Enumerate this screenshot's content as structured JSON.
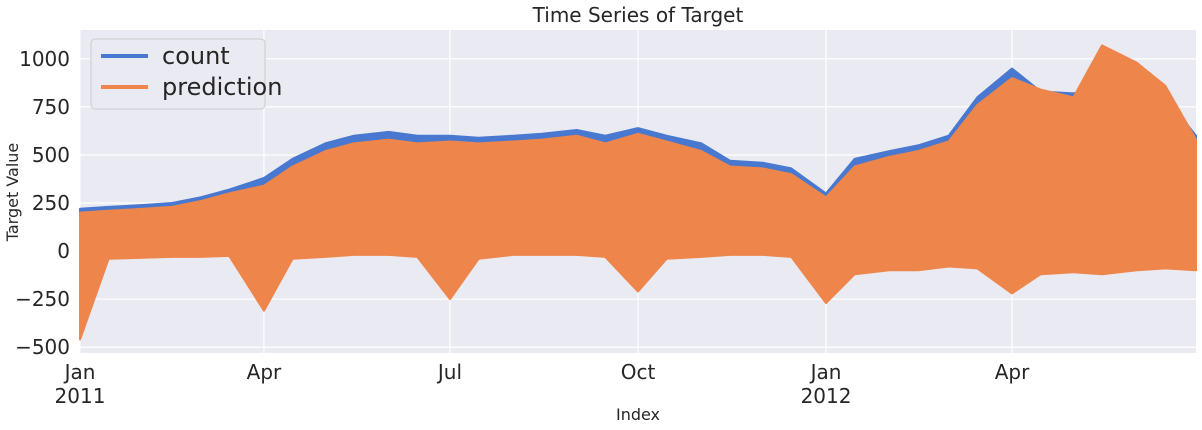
{
  "chart_data": {
    "type": "line",
    "title": "Time Series of Target",
    "xlabel": "Index",
    "ylabel": "Target Value",
    "x_range": [
      "2011-01-01",
      "2012-06-30"
    ],
    "ylim": [
      -530,
      1150
    ],
    "yticks": [
      -500,
      -250,
      0,
      250,
      500,
      750,
      1000
    ],
    "xticks": [
      {
        "date": "2011-01-01",
        "label": "Jan",
        "sublabel": "2011"
      },
      {
        "date": "2011-04-01",
        "label": "Apr",
        "sublabel": ""
      },
      {
        "date": "2011-07-01",
        "label": "Jul",
        "sublabel": ""
      },
      {
        "date": "2011-10-01",
        "label": "Oct",
        "sublabel": ""
      },
      {
        "date": "2012-01-01",
        "label": "Jan",
        "sublabel": "2012"
      },
      {
        "date": "2012-04-01",
        "label": "Apr",
        "sublabel": ""
      }
    ],
    "grid": true,
    "legend_position": "top-left",
    "background": "#EAEAF2",
    "series": [
      {
        "name": "count",
        "color": "#4878CF",
        "x": [
          "2011-01-01",
          "2011-01-15",
          "2011-02-01",
          "2011-02-15",
          "2011-03-01",
          "2011-03-15",
          "2011-04-01",
          "2011-04-15",
          "2011-05-01",
          "2011-05-15",
          "2011-06-01",
          "2011-06-15",
          "2011-07-01",
          "2011-07-15",
          "2011-08-01",
          "2011-08-15",
          "2011-09-01",
          "2011-09-15",
          "2011-10-01",
          "2011-10-15",
          "2011-11-01",
          "2011-11-15",
          "2011-12-01",
          "2011-12-15",
          "2012-01-01",
          "2012-01-15",
          "2012-02-01",
          "2012-02-15",
          "2012-03-01",
          "2012-03-15",
          "2012-04-01",
          "2012-04-15",
          "2012-05-01",
          "2012-05-15",
          "2012-06-01",
          "2012-06-15",
          "2012-06-30"
        ],
        "upper": [
          220,
          230,
          240,
          250,
          280,
          320,
          380,
          480,
          560,
          600,
          620,
          600,
          600,
          590,
          600,
          610,
          630,
          600,
          640,
          600,
          560,
          470,
          460,
          430,
          300,
          480,
          520,
          550,
          600,
          800,
          950,
          830,
          820,
          850,
          840,
          800,
          600
        ],
        "lower": [
          -30,
          -20,
          -15,
          -10,
          -10,
          -5,
          -5,
          0,
          0,
          0,
          0,
          0,
          0,
          0,
          0,
          0,
          0,
          0,
          0,
          0,
          0,
          0,
          0,
          0,
          0,
          0,
          0,
          0,
          0,
          0,
          0,
          0,
          0,
          0,
          0,
          0,
          0
        ]
      },
      {
        "name": "prediction",
        "color": "#EE854A",
        "x": [
          "2011-01-01",
          "2011-01-15",
          "2011-02-01",
          "2011-02-15",
          "2011-03-01",
          "2011-03-15",
          "2011-04-01",
          "2011-04-15",
          "2011-05-01",
          "2011-05-15",
          "2011-06-01",
          "2011-06-15",
          "2011-07-01",
          "2011-07-15",
          "2011-08-01",
          "2011-08-15",
          "2011-09-01",
          "2011-09-15",
          "2011-10-01",
          "2011-10-15",
          "2011-11-01",
          "2011-11-15",
          "2011-12-01",
          "2011-12-15",
          "2012-01-01",
          "2012-01-15",
          "2012-02-01",
          "2012-02-15",
          "2012-03-01",
          "2012-03-15",
          "2012-04-01",
          "2012-04-15",
          "2012-05-01",
          "2012-05-15",
          "2012-06-01",
          "2012-06-15",
          "2012-06-30"
        ],
        "upper": [
          200,
          210,
          220,
          230,
          260,
          300,
          340,
          440,
          520,
          560,
          580,
          560,
          570,
          560,
          570,
          580,
          600,
          560,
          610,
          570,
          520,
          440,
          430,
          400,
          280,
          440,
          490,
          520,
          570,
          760,
          900,
          840,
          800,
          1070,
          980,
          860,
          580
        ],
        "lower": [
          -460,
          -40,
          -35,
          -30,
          -30,
          -25,
          -310,
          -40,
          -30,
          -20,
          -20,
          -30,
          -250,
          -40,
          -20,
          -20,
          -20,
          -30,
          -210,
          -40,
          -30,
          -20,
          -20,
          -30,
          -270,
          -120,
          -100,
          -100,
          -80,
          -90,
          -220,
          -120,
          -110,
          -120,
          -100,
          -90,
          -100
        ]
      }
    ]
  }
}
